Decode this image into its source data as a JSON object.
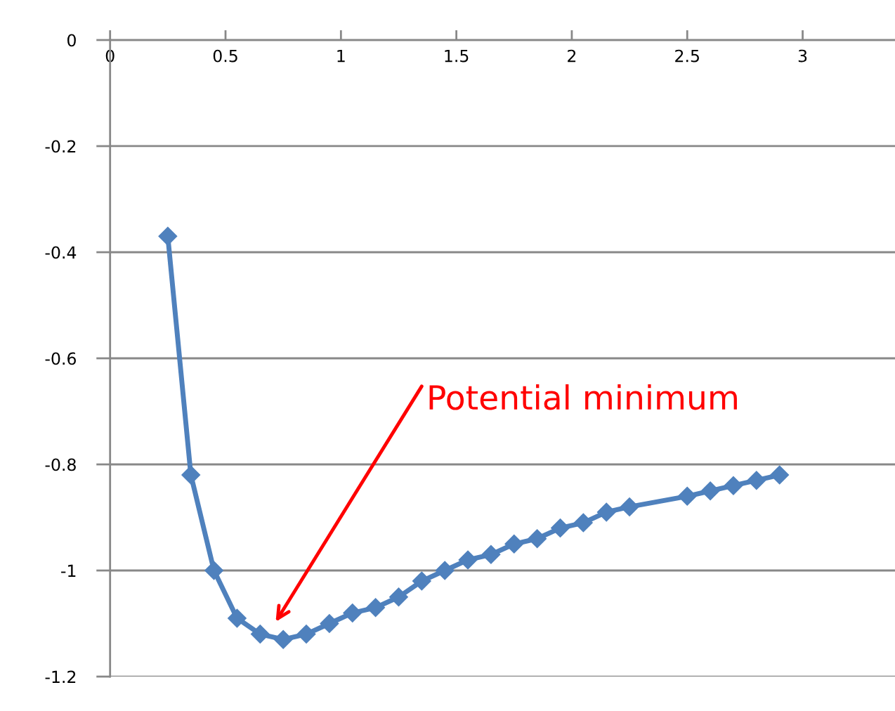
{
  "chart_data": {
    "type": "line",
    "x": [
      0.25,
      0.35,
      0.45,
      0.55,
      0.65,
      0.75,
      0.85,
      0.95,
      1.05,
      1.15,
      1.25,
      1.35,
      1.45,
      1.55,
      1.65,
      1.75,
      1.85,
      1.95,
      2.05,
      2.15,
      2.25,
      2.5,
      2.6,
      2.7,
      2.8,
      2.9
    ],
    "series": [
      {
        "color": "#4f81bd",
        "values": [
          -0.37,
          -0.82,
          -1.0,
          -1.09,
          -1.12,
          -1.13,
          -1.12,
          -1.1,
          -1.08,
          -1.07,
          -1.05,
          -1.02,
          -1.0,
          -0.98,
          -0.97,
          -0.95,
          -0.94,
          -0.92,
          -0.91,
          -0.89,
          -0.88,
          -0.86,
          -0.85,
          -0.84,
          -0.83,
          -0.82
        ]
      }
    ],
    "marker": "diamond",
    "line_style": "solid",
    "grid": "y",
    "xlim": [
      0,
      3.4
    ],
    "xticks": [
      0,
      0.5,
      1,
      1.5,
      2,
      2.5,
      3
    ],
    "ylim": [
      -1.2,
      0
    ],
    "yticks": [
      {
        "value": 0,
        "label": "0"
      },
      {
        "value": -0.2,
        "label": "-0.2"
      },
      {
        "value": -0.4,
        "label": "-0.4"
      },
      {
        "value": -0.6,
        "label": "-0.6"
      },
      {
        "value": -0.8,
        "label": "-0.8"
      },
      {
        "value": -1,
        "label": "-1"
      },
      {
        "value": -1.2,
        "label": "-1.2"
      }
    ],
    "annotations": [
      "Potential minimum"
    ]
  }
}
